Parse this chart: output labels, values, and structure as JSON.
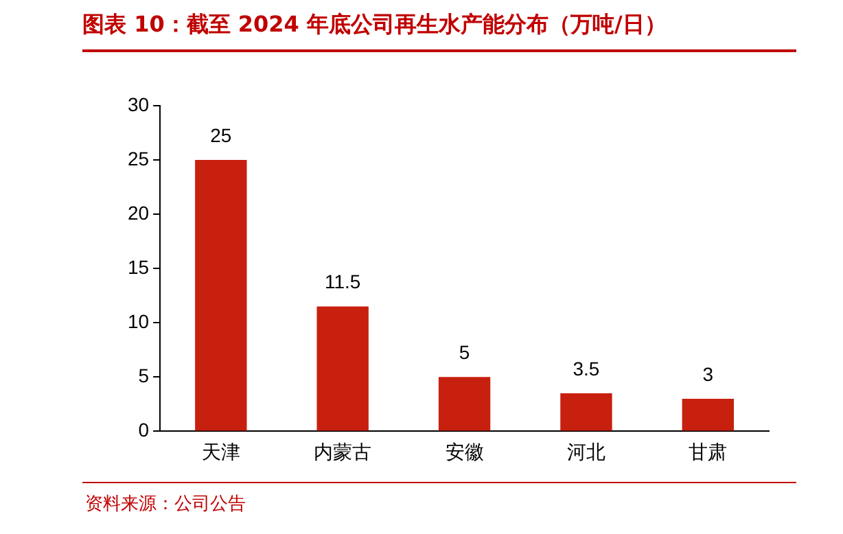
{
  "chart_data": {
    "type": "bar",
    "title": "图表 10：截至 2024 年底公司再生水产能分布（万吨/日）",
    "categories": [
      "天津",
      "内蒙古",
      "安徽",
      "河北",
      "甘肃"
    ],
    "values": [
      25,
      11.5,
      5,
      3.5,
      3
    ],
    "color": "#c8200f",
    "ylim": [
      0,
      30
    ],
    "yticks": [
      0,
      5,
      10,
      15,
      20,
      25,
      30
    ],
    "grid": false,
    "legend": false,
    "data_labels": true,
    "annotations": [
      "资料来源：公司公告"
    ]
  }
}
